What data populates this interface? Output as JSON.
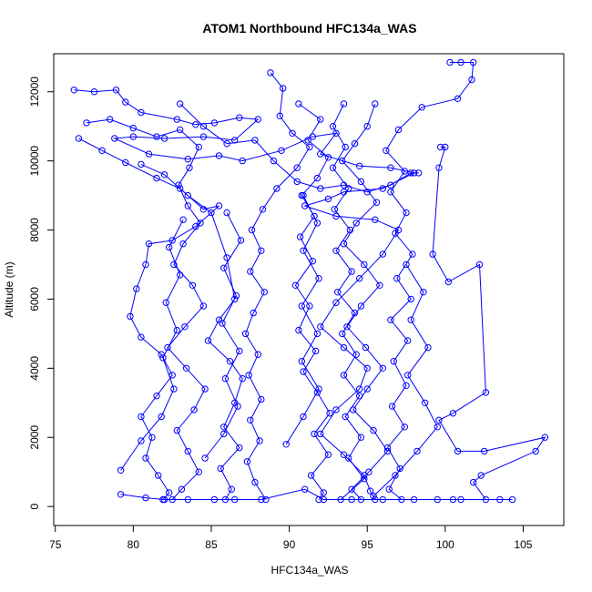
{
  "chart_data": {
    "type": "line",
    "title": "ATOM1 Northbound HFC134a_WAS",
    "xlabel": "HFC134a_WAS",
    "ylabel": "Altitude (m)",
    "xlim": [
      74.9,
      107.6
    ],
    "ylim": [
      -550,
      13100
    ],
    "xticks": [
      75,
      80,
      85,
      90,
      95,
      100,
      105
    ],
    "yticks": [
      0,
      2000,
      4000,
      6000,
      8000,
      10000,
      12000
    ],
    "color": "#0000ff",
    "grid": false,
    "series": [
      {
        "points": [
          [
            76.2,
            12050
          ],
          [
            77.5,
            12000
          ],
          [
            78.9,
            12050
          ],
          [
            79.5,
            11700
          ],
          [
            80.5,
            11400
          ],
          [
            82.8,
            11200
          ],
          [
            84.0,
            11050
          ],
          [
            85.2,
            11100
          ],
          [
            86.8,
            11250
          ],
          [
            88.0,
            11200
          ],
          [
            86.5,
            10600
          ],
          [
            84.5,
            10700
          ],
          [
            82.0,
            10650
          ],
          [
            80.0,
            10700
          ],
          [
            78.8,
            10650
          ],
          [
            81.0,
            10200
          ],
          [
            83.5,
            10050
          ],
          [
            85.5,
            10150
          ],
          [
            87.0,
            10000
          ],
          [
            89.5,
            10300
          ],
          [
            91.5,
            10700
          ],
          [
            93.0,
            10800
          ],
          [
            92.0,
            10200
          ],
          [
            94.5,
            9850
          ],
          [
            96.5,
            9800
          ],
          [
            98.0,
            9650
          ],
          [
            96.0,
            9200
          ],
          [
            93.5,
            9100
          ],
          [
            92.5,
            8900
          ],
          [
            91.0,
            8700
          ],
          [
            93.0,
            8400
          ],
          [
            95.5,
            8300
          ],
          [
            97.0,
            8000
          ],
          [
            96.0,
            7300
          ],
          [
            94.5,
            6600
          ],
          [
            93.0,
            5900
          ],
          [
            92.0,
            5200
          ],
          [
            93.5,
            4600
          ],
          [
            95.0,
            4000
          ],
          [
            94.5,
            3400
          ],
          [
            93.0,
            2800
          ],
          [
            92.0,
            2100
          ],
          [
            93.5,
            1500
          ],
          [
            94.8,
            900
          ],
          [
            95.2,
            450
          ],
          [
            95.5,
            200
          ]
        ]
      },
      {
        "points": [
          [
            77.0,
            11100
          ],
          [
            78.5,
            11200
          ],
          [
            80.0,
            10950
          ],
          [
            81.5,
            10700
          ],
          [
            83.0,
            10900
          ],
          [
            84.2,
            10400
          ],
          [
            83.6,
            9800
          ],
          [
            82.9,
            9300
          ],
          [
            83.5,
            8700
          ],
          [
            84.3,
            8200
          ],
          [
            83.2,
            7600
          ],
          [
            82.6,
            7000
          ],
          [
            83.8,
            6400
          ],
          [
            84.5,
            5800
          ],
          [
            83.3,
            5200
          ],
          [
            82.2,
            4600
          ],
          [
            83.4,
            4000
          ],
          [
            84.6,
            3400
          ],
          [
            83.9,
            2800
          ],
          [
            82.8,
            2200
          ],
          [
            83.5,
            1600
          ],
          [
            84.2,
            1000
          ],
          [
            83.1,
            500
          ],
          [
            82.5,
            200
          ]
        ]
      },
      {
        "points": [
          [
            76.5,
            10650
          ],
          [
            78.0,
            10300
          ],
          [
            79.5,
            9950
          ],
          [
            81.5,
            9500
          ],
          [
            83.0,
            9200
          ],
          [
            84.5,
            8600
          ],
          [
            85.5,
            8700
          ],
          [
            84.0,
            8100
          ],
          [
            82.5,
            7700
          ],
          [
            81.0,
            7600
          ],
          [
            80.8,
            7000
          ],
          [
            80.2,
            6300
          ],
          [
            79.8,
            5500
          ],
          [
            80.5,
            4900
          ],
          [
            81.8,
            4400
          ],
          [
            82.5,
            3800
          ],
          [
            81.5,
            3200
          ],
          [
            80.5,
            2600
          ],
          [
            81.2,
            2000
          ],
          [
            80.8,
            1400
          ],
          [
            81.6,
            900
          ],
          [
            82.3,
            400
          ],
          [
            81.9,
            200
          ]
        ]
      },
      {
        "points": [
          [
            80.5,
            9900
          ],
          [
            82.0,
            9600
          ],
          [
            83.5,
            9000
          ],
          [
            85.0,
            8500
          ],
          [
            86.0,
            7200
          ],
          [
            86.5,
            6000
          ],
          [
            85.5,
            5400
          ],
          [
            84.8,
            4800
          ],
          [
            86.2,
            4200
          ],
          [
            87.0,
            3700
          ],
          [
            86.5,
            3000
          ],
          [
            85.8,
            2300
          ],
          [
            86.8,
            1700
          ],
          [
            85.6,
            1100
          ],
          [
            86.3,
            500
          ],
          [
            85.9,
            200
          ]
        ]
      },
      {
        "points": [
          [
            88.8,
            12550
          ],
          [
            89.6,
            12100
          ],
          [
            89.4,
            11300
          ],
          [
            90.2,
            10800
          ],
          [
            91.3,
            10400
          ],
          [
            90.5,
            9800
          ],
          [
            89.2,
            9200
          ],
          [
            88.3,
            8600
          ],
          [
            87.6,
            8000
          ],
          [
            88.2,
            7400
          ],
          [
            87.5,
            6800
          ],
          [
            88.4,
            6200
          ],
          [
            87.7,
            5600
          ],
          [
            87.2,
            5000
          ],
          [
            88.0,
            4400
          ],
          [
            87.4,
            3800
          ],
          [
            88.2,
            3100
          ],
          [
            87.5,
            2500
          ],
          [
            88.1,
            1900
          ],
          [
            87.3,
            1300
          ],
          [
            87.8,
            700
          ],
          [
            88.5,
            200
          ]
        ]
      },
      {
        "points": [
          [
            90.6,
            11650
          ],
          [
            92.0,
            11200
          ],
          [
            91.2,
            10600
          ],
          [
            92.5,
            10100
          ],
          [
            91.8,
            9500
          ],
          [
            90.8,
            9000
          ],
          [
            91.6,
            8400
          ],
          [
            90.7,
            7800
          ],
          [
            91.5,
            7100
          ],
          [
            90.4,
            6400
          ],
          [
            91.3,
            5800
          ],
          [
            90.6,
            5100
          ],
          [
            91.7,
            4500
          ],
          [
            90.9,
            3900
          ],
          [
            91.8,
            3300
          ],
          [
            92.6,
            2700
          ],
          [
            91.6,
            2100
          ],
          [
            92.5,
            1500
          ],
          [
            91.4,
            900
          ],
          [
            92.2,
            400
          ],
          [
            91.9,
            200
          ]
        ]
      },
      {
        "points": [
          [
            95.5,
            11650
          ],
          [
            95.0,
            11000
          ],
          [
            94.2,
            10500
          ],
          [
            93.4,
            10000
          ],
          [
            94.6,
            9400
          ],
          [
            95.6,
            8800
          ],
          [
            94.3,
            8200
          ],
          [
            93.5,
            7600
          ],
          [
            94.8,
            7000
          ],
          [
            95.8,
            6400
          ],
          [
            94.6,
            5800
          ],
          [
            93.7,
            5200
          ],
          [
            94.9,
            4600
          ],
          [
            96.0,
            4000
          ],
          [
            95.0,
            3400
          ],
          [
            94.1,
            2800
          ],
          [
            95.4,
            2200
          ],
          [
            96.3,
            1600
          ],
          [
            95.1,
            1000
          ],
          [
            94.0,
            500
          ],
          [
            94.6,
            200
          ]
        ]
      },
      {
        "points": [
          [
            100.3,
            12850
          ],
          [
            101.0,
            12850
          ],
          [
            101.8,
            12850
          ],
          [
            101.7,
            12350
          ],
          [
            100.8,
            11800
          ],
          [
            98.5,
            11550
          ],
          [
            97.0,
            10900
          ],
          [
            96.2,
            10300
          ],
          [
            97.4,
            9700
          ],
          [
            96.5,
            9100
          ],
          [
            97.5,
            8500
          ],
          [
            96.8,
            7900
          ],
          [
            97.9,
            7300
          ],
          [
            96.9,
            6600
          ],
          [
            97.8,
            6000
          ],
          [
            96.5,
            5400
          ],
          [
            97.6,
            4800
          ],
          [
            96.7,
            4200
          ],
          [
            97.5,
            3500
          ],
          [
            96.6,
            2900
          ],
          [
            97.4,
            2300
          ],
          [
            96.3,
            1700
          ],
          [
            97.1,
            1100
          ],
          [
            96.4,
            500
          ],
          [
            97.2,
            200
          ]
        ]
      },
      {
        "points": [
          [
            99.7,
            10400
          ],
          [
            100.0,
            10400
          ],
          [
            99.6,
            9800
          ],
          [
            99.2,
            7300
          ],
          [
            100.2,
            6500
          ],
          [
            102.2,
            7000
          ],
          [
            102.6,
            3300
          ],
          [
            100.5,
            2700
          ],
          [
            99.6,
            2500
          ],
          [
            100.8,
            1600
          ],
          [
            102.5,
            1600
          ],
          [
            106.4,
            2000
          ],
          [
            105.8,
            1600
          ],
          [
            102.3,
            900
          ],
          [
            101.8,
            700
          ],
          [
            102.6,
            200
          ],
          [
            103.5,
            200
          ],
          [
            104.3,
            200
          ],
          [
            101.0,
            200
          ],
          [
            99.5,
            200
          ]
        ]
      },
      {
        "points": [
          [
            83.0,
            11650
          ],
          [
            84.5,
            11000
          ],
          [
            86.0,
            10500
          ],
          [
            87.8,
            10600
          ],
          [
            89.0,
            10000
          ],
          [
            90.5,
            9400
          ],
          [
            92.0,
            9200
          ],
          [
            93.5,
            9300
          ],
          [
            95.0,
            9100
          ],
          [
            96.5,
            9300
          ],
          [
            97.8,
            9650
          ],
          [
            98.3,
            9650
          ]
        ]
      },
      {
        "points": [
          [
            93.5,
            11650
          ],
          [
            92.8,
            11000
          ],
          [
            93.6,
            10400
          ],
          [
            92.8,
            9800
          ],
          [
            93.8,
            9200
          ],
          [
            92.9,
            8600
          ],
          [
            93.9,
            8000
          ],
          [
            93.0,
            7400
          ],
          [
            94.0,
            6800
          ],
          [
            93.1,
            6200
          ],
          [
            94.2,
            5600
          ],
          [
            93.4,
            5000
          ],
          [
            94.3,
            4400
          ],
          [
            93.5,
            3800
          ],
          [
            94.5,
            3200
          ],
          [
            93.6,
            2600
          ],
          [
            94.6,
            2000
          ],
          [
            93.8,
            1400
          ],
          [
            94.8,
            800
          ],
          [
            93.3,
            200
          ]
        ]
      },
      {
        "points": [
          [
            79.2,
            350
          ],
          [
            80.8,
            250
          ],
          [
            82.0,
            200
          ],
          [
            83.5,
            200
          ],
          [
            85.2,
            200
          ],
          [
            86.5,
            200
          ],
          [
            88.2,
            200
          ],
          [
            91.0,
            500
          ],
          [
            92.2,
            200
          ],
          [
            94.0,
            200
          ],
          [
            96.0,
            200
          ],
          [
            98.0,
            200
          ],
          [
            100.5,
            200
          ]
        ]
      },
      {
        "points": [
          [
            79.2,
            1050
          ],
          [
            80.5,
            1900
          ],
          [
            81.8,
            2600
          ],
          [
            82.6,
            3400
          ],
          [
            81.9,
            4300
          ],
          [
            82.8,
            5100
          ],
          [
            82.1,
            5900
          ],
          [
            83.0,
            6700
          ],
          [
            82.3,
            7500
          ],
          [
            83.2,
            8300
          ]
        ]
      },
      {
        "points": [
          [
            84.6,
            1400
          ],
          [
            85.8,
            2100
          ],
          [
            86.7,
            2900
          ],
          [
            85.9,
            3700
          ],
          [
            86.8,
            4500
          ],
          [
            85.7,
            5300
          ],
          [
            86.6,
            6100
          ],
          [
            85.8,
            6900
          ],
          [
            86.9,
            7700
          ],
          [
            86.0,
            8500
          ]
        ]
      },
      {
        "points": [
          [
            95.4,
            300
          ],
          [
            96.8,
            900
          ],
          [
            98.2,
            1600
          ],
          [
            99.5,
            2300
          ],
          [
            98.7,
            3000
          ],
          [
            97.6,
            3800
          ],
          [
            98.9,
            4600
          ],
          [
            97.8,
            5400
          ],
          [
            98.6,
            6200
          ],
          [
            97.5,
            7000
          ]
        ]
      },
      {
        "points": [
          [
            89.8,
            1800
          ],
          [
            90.9,
            2600
          ],
          [
            91.9,
            3400
          ],
          [
            90.8,
            4200
          ],
          [
            91.8,
            5000
          ],
          [
            90.8,
            5800
          ],
          [
            91.9,
            6600
          ],
          [
            90.9,
            7400
          ],
          [
            91.8,
            8200
          ],
          [
            90.9,
            9000
          ]
        ]
      }
    ]
  }
}
